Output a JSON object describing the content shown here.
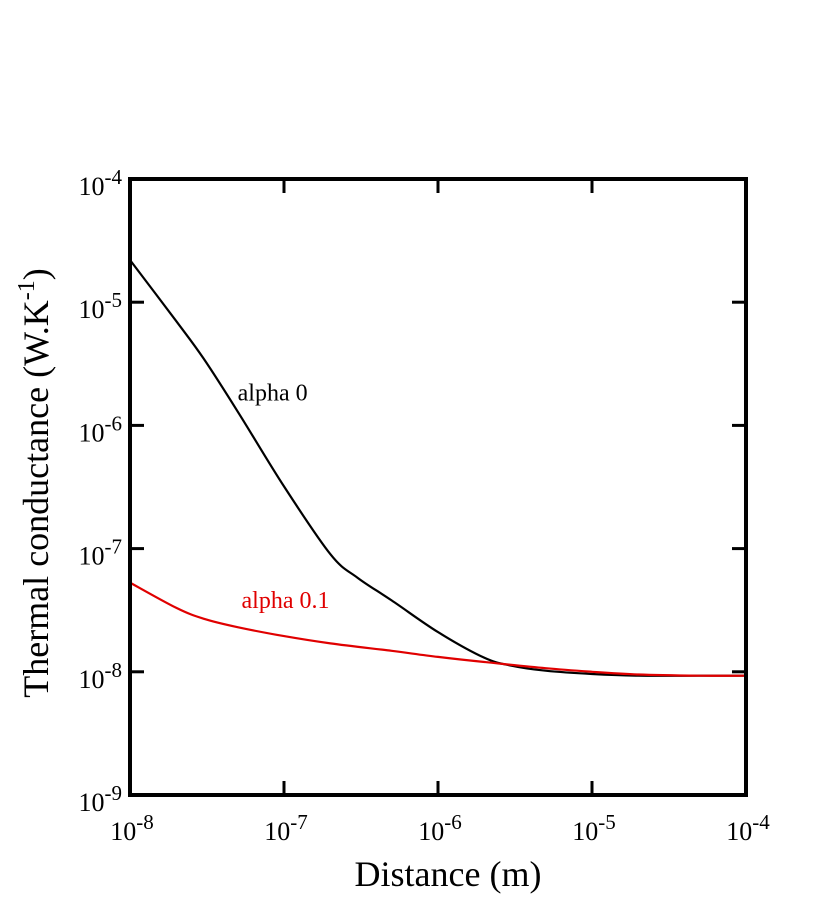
{
  "chart_data": {
    "type": "line",
    "xlabel": "Distance (m)",
    "ylabel_base": "Thermal conductance (W.K",
    "ylabel_sup": "-1",
    "ylabel_tail": ")",
    "x_scale": "log",
    "y_scale": "log",
    "xlim": [
      1e-08,
      0.0001
    ],
    "ylim": [
      1e-09,
      0.0001
    ],
    "grid": false,
    "legend": "none",
    "x_ticks": [
      {
        "value": 1e-08,
        "base": "10",
        "exp": "-8"
      },
      {
        "value": 1e-07,
        "base": "10",
        "exp": "-7"
      },
      {
        "value": 1e-06,
        "base": "10",
        "exp": "-6"
      },
      {
        "value": 1e-05,
        "base": "10",
        "exp": "-5"
      },
      {
        "value": 0.0001,
        "base": "10",
        "exp": "-4"
      }
    ],
    "y_ticks": [
      {
        "value": 1e-09,
        "base": "10",
        "exp": "-9"
      },
      {
        "value": 1e-08,
        "base": "10",
        "exp": "-8"
      },
      {
        "value": 1e-07,
        "base": "10",
        "exp": "-7"
      },
      {
        "value": 1e-06,
        "base": "10",
        "exp": "-6"
      },
      {
        "value": 1e-05,
        "base": "10",
        "exp": "-5"
      },
      {
        "value": 0.0001,
        "base": "10",
        "exp": "-4"
      }
    ],
    "series": [
      {
        "name": "alpha 0",
        "color": "#000000",
        "x": [
          1e-08,
          2e-08,
          3e-08,
          5e-08,
          1e-07,
          2e-07,
          3e-07,
          5e-07,
          1e-06,
          2e-06,
          3e-06,
          5e-06,
          1e-05,
          2e-05,
          5e-05,
          0.0001
        ],
        "y": [
          2.2e-05,
          7e-06,
          3.5e-06,
          1.3e-06,
          3.2e-07,
          9e-08,
          5.8e-08,
          3.8e-08,
          2.1e-08,
          1.3e-08,
          1.12e-08,
          1.02e-08,
          9.6e-09,
          9.3e-09,
          9.3e-09,
          9.3e-09
        ]
      },
      {
        "name": "alpha 0.1",
        "color": "#e00000",
        "x": [
          1e-08,
          2e-08,
          3e-08,
          5e-08,
          1e-07,
          2e-07,
          5e-07,
          1e-06,
          2e-06,
          5e-06,
          1e-05,
          2e-05,
          5e-05,
          0.0001
        ],
        "y": [
          5.3e-08,
          3.3e-08,
          2.7e-08,
          2.3e-08,
          1.95e-08,
          1.7e-08,
          1.48e-08,
          1.32e-08,
          1.2e-08,
          1.07e-08,
          1e-08,
          9.5e-09,
          9.3e-09,
          9.3e-09
        ]
      }
    ],
    "annotations": [
      {
        "text": "alpha 0",
        "x": 5e-08,
        "y": 1.6e-06,
        "color": "#000000"
      },
      {
        "text": "alpha 0.1",
        "x": 5.3e-08,
        "y": 3.3e-08,
        "color": "#e00000"
      }
    ]
  }
}
